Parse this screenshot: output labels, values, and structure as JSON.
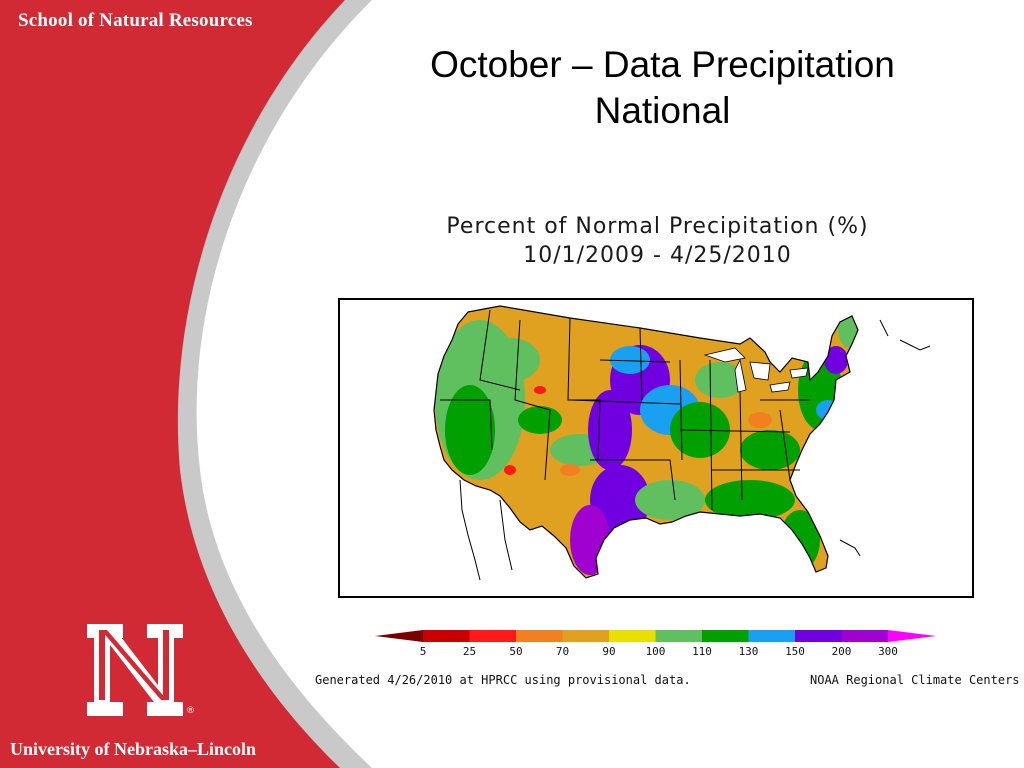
{
  "sidebar": {
    "school_name": "School of Natural Resources",
    "university_name": "University of Nebraska–Lincoln",
    "logo_letter": "N",
    "registered_mark": "®",
    "colors": {
      "red": "#d12a35",
      "gray": "#c9c9c9"
    }
  },
  "slide": {
    "title_line1": "October – Data Precipitation",
    "title_line2": "National"
  },
  "map": {
    "title_line1": "Percent of Normal Precipitation (%)",
    "title_line2": "10/1/2009 - 4/25/2010",
    "region": "Contiguous United States"
  },
  "legend": {
    "labels": [
      "5",
      "25",
      "50",
      "70",
      "90",
      "100",
      "110",
      "130",
      "150",
      "200",
      "300"
    ],
    "colors": [
      "#7a0000",
      "#c80000",
      "#ff1a1a",
      "#f08020",
      "#e0a020",
      "#e8e000",
      "#60c060",
      "#00a000",
      "#1aa0f0",
      "#7000e0",
      "#a000d0",
      "#ff00ff"
    ]
  },
  "footer": {
    "generated": "Generated 4/26/2010 at HPRCC using provisional data.",
    "credit": "NOAA Regional Climate Centers"
  }
}
